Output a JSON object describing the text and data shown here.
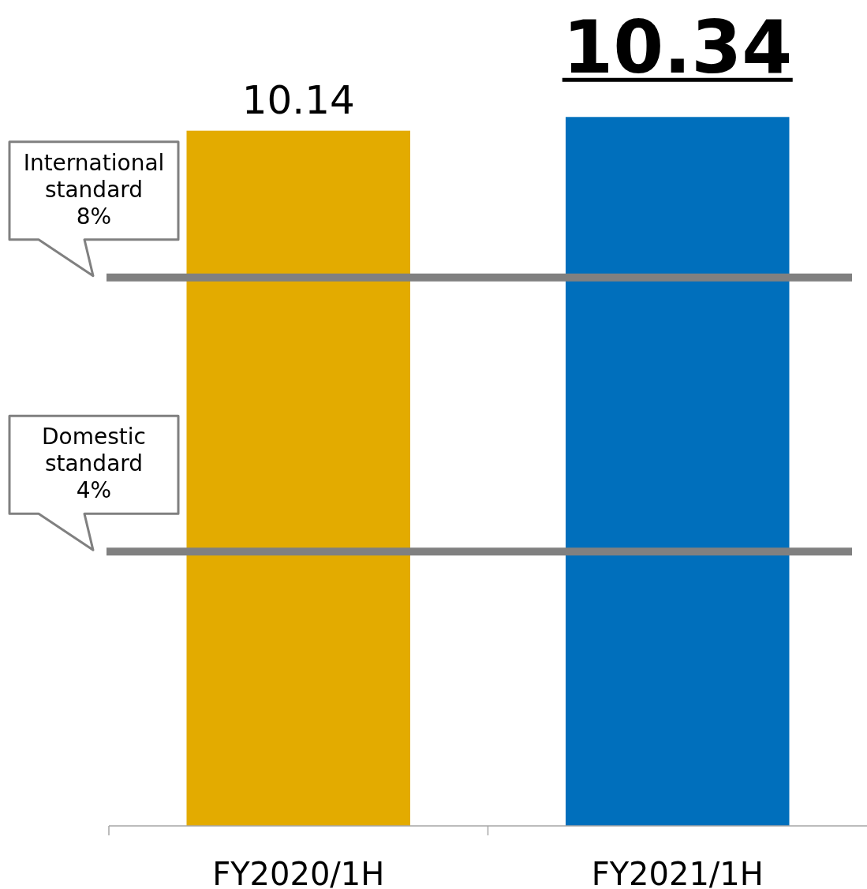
{
  "chart_data": {
    "type": "bar",
    "categories": [
      "FY2020/1H",
      "FY2021/1H"
    ],
    "values": [
      10.14,
      10.34
    ],
    "colors": [
      "#e3ab00",
      "#006fbc"
    ],
    "value_labels": [
      "10.14",
      "10.34"
    ],
    "tick_labels": "x",
    "ref_lines": [
      {
        "axis": "y",
        "value": 8,
        "label": "International\nstandard\n8%",
        "color": "#808080"
      },
      {
        "axis": "y",
        "value": 4,
        "label": "Domestic\nstandard\n4%",
        "color": "#808080"
      }
    ]
  }
}
